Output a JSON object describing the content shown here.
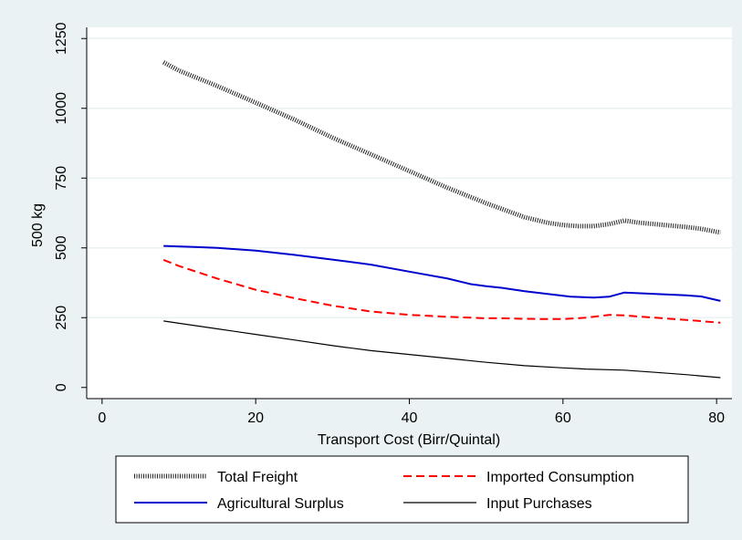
{
  "chart_data": {
    "type": "line",
    "xlabel": "Transport Cost (Birr/Quintal)",
    "ylabel": "500 kg",
    "xlim": [
      -2,
      82
    ],
    "ylim": [
      -40,
      1290
    ],
    "x_ticks": [
      0,
      20,
      40,
      60,
      80
    ],
    "y_ticks": [
      0,
      250,
      500,
      750,
      1000,
      1250
    ],
    "grid": true,
    "legend_placement": "bottom",
    "series": [
      {
        "name": "Total Freight",
        "color": "#222222",
        "style": "dotted",
        "points": [
          [
            8,
            1165
          ],
          [
            10,
            1135
          ],
          [
            15,
            1080
          ],
          [
            20,
            1020
          ],
          [
            25,
            960
          ],
          [
            30,
            895
          ],
          [
            35,
            835
          ],
          [
            40,
            775
          ],
          [
            45,
            715
          ],
          [
            50,
            660
          ],
          [
            55,
            610
          ],
          [
            58,
            590
          ],
          [
            60,
            582
          ],
          [
            62,
            578
          ],
          [
            64,
            578
          ],
          [
            66,
            585
          ],
          [
            68,
            598
          ],
          [
            70,
            590
          ],
          [
            72,
            585
          ],
          [
            74,
            580
          ],
          [
            76,
            575
          ],
          [
            78,
            568
          ],
          [
            80.5,
            555
          ]
        ]
      },
      {
        "name": "Imported Consumption",
        "color": "#ff0000",
        "style": "dashed",
        "points": [
          [
            8,
            457
          ],
          [
            10,
            435
          ],
          [
            15,
            390
          ],
          [
            20,
            350
          ],
          [
            25,
            320
          ],
          [
            30,
            293
          ],
          [
            35,
            272
          ],
          [
            40,
            260
          ],
          [
            45,
            253
          ],
          [
            48,
            250
          ],
          [
            50,
            248
          ],
          [
            52,
            248
          ],
          [
            55,
            246
          ],
          [
            58,
            245
          ],
          [
            60,
            245
          ],
          [
            63,
            250
          ],
          [
            66,
            260
          ],
          [
            68,
            258
          ],
          [
            72,
            250
          ],
          [
            76,
            242
          ],
          [
            80.5,
            232
          ]
        ]
      },
      {
        "name": "Agricultural Surplus",
        "color": "#0000cc",
        "style": "solid",
        "points": [
          [
            8,
            507
          ],
          [
            12,
            503
          ],
          [
            15,
            500
          ],
          [
            20,
            490
          ],
          [
            25,
            475
          ],
          [
            30,
            458
          ],
          [
            35,
            440
          ],
          [
            40,
            415
          ],
          [
            45,
            390
          ],
          [
            48,
            370
          ],
          [
            50,
            363
          ],
          [
            52,
            357
          ],
          [
            55,
            345
          ],
          [
            58,
            335
          ],
          [
            61,
            325
          ],
          [
            64,
            322
          ],
          [
            66,
            325
          ],
          [
            68,
            340
          ],
          [
            72,
            335
          ],
          [
            76,
            330
          ],
          [
            78,
            326
          ],
          [
            80.5,
            310
          ]
        ]
      },
      {
        "name": "Input Purchases",
        "color": "#000000",
        "style": "solid",
        "points": [
          [
            8,
            238
          ],
          [
            10,
            230
          ],
          [
            15,
            210
          ],
          [
            20,
            190
          ],
          [
            25,
            170
          ],
          [
            30,
            150
          ],
          [
            35,
            132
          ],
          [
            40,
            118
          ],
          [
            45,
            104
          ],
          [
            50,
            90
          ],
          [
            55,
            78
          ],
          [
            60,
            70
          ],
          [
            63,
            66
          ],
          [
            68,
            62
          ],
          [
            72,
            54
          ],
          [
            76,
            46
          ],
          [
            80.5,
            35
          ]
        ]
      }
    ]
  }
}
